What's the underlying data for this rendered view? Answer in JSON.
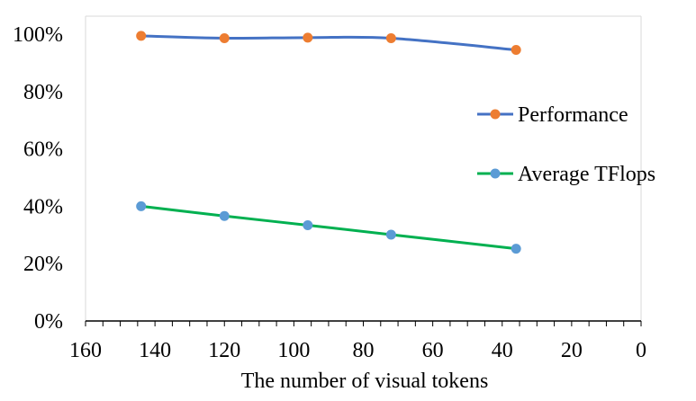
{
  "chart_data": {
    "type": "line",
    "xlabel": "The number of visual tokens",
    "ylabel": "",
    "x_reversed": true,
    "xlim": [
      0,
      160
    ],
    "ylim": [
      0,
      100
    ],
    "x_ticks": [
      160,
      140,
      120,
      100,
      80,
      60,
      40,
      20,
      0
    ],
    "x_tick_labels": [
      "160",
      "140",
      "120",
      "100",
      "80",
      "60",
      "40",
      "20",
      "0"
    ],
    "y_ticks": [
      0,
      20,
      40,
      60,
      80,
      100
    ],
    "y_tick_labels": [
      "0%",
      "20%",
      "40%",
      "60%",
      "80%",
      "100%"
    ],
    "grid": false,
    "legend_position": "right",
    "series": [
      {
        "name": "Performance",
        "line_color": "#4472c4",
        "marker_color": "#ed7d31",
        "x": [
          144,
          120,
          96,
          72,
          36
        ],
        "y": [
          99.4,
          98.6,
          98.8,
          98.6,
          94.5
        ]
      },
      {
        "name": "Average TFlops",
        "line_color": "#00b050",
        "marker_color": "#5b9bd5",
        "x": [
          144,
          120,
          96,
          72,
          36
        ],
        "y": [
          40.0,
          36.6,
          33.4,
          30.1,
          25.2
        ]
      }
    ]
  }
}
